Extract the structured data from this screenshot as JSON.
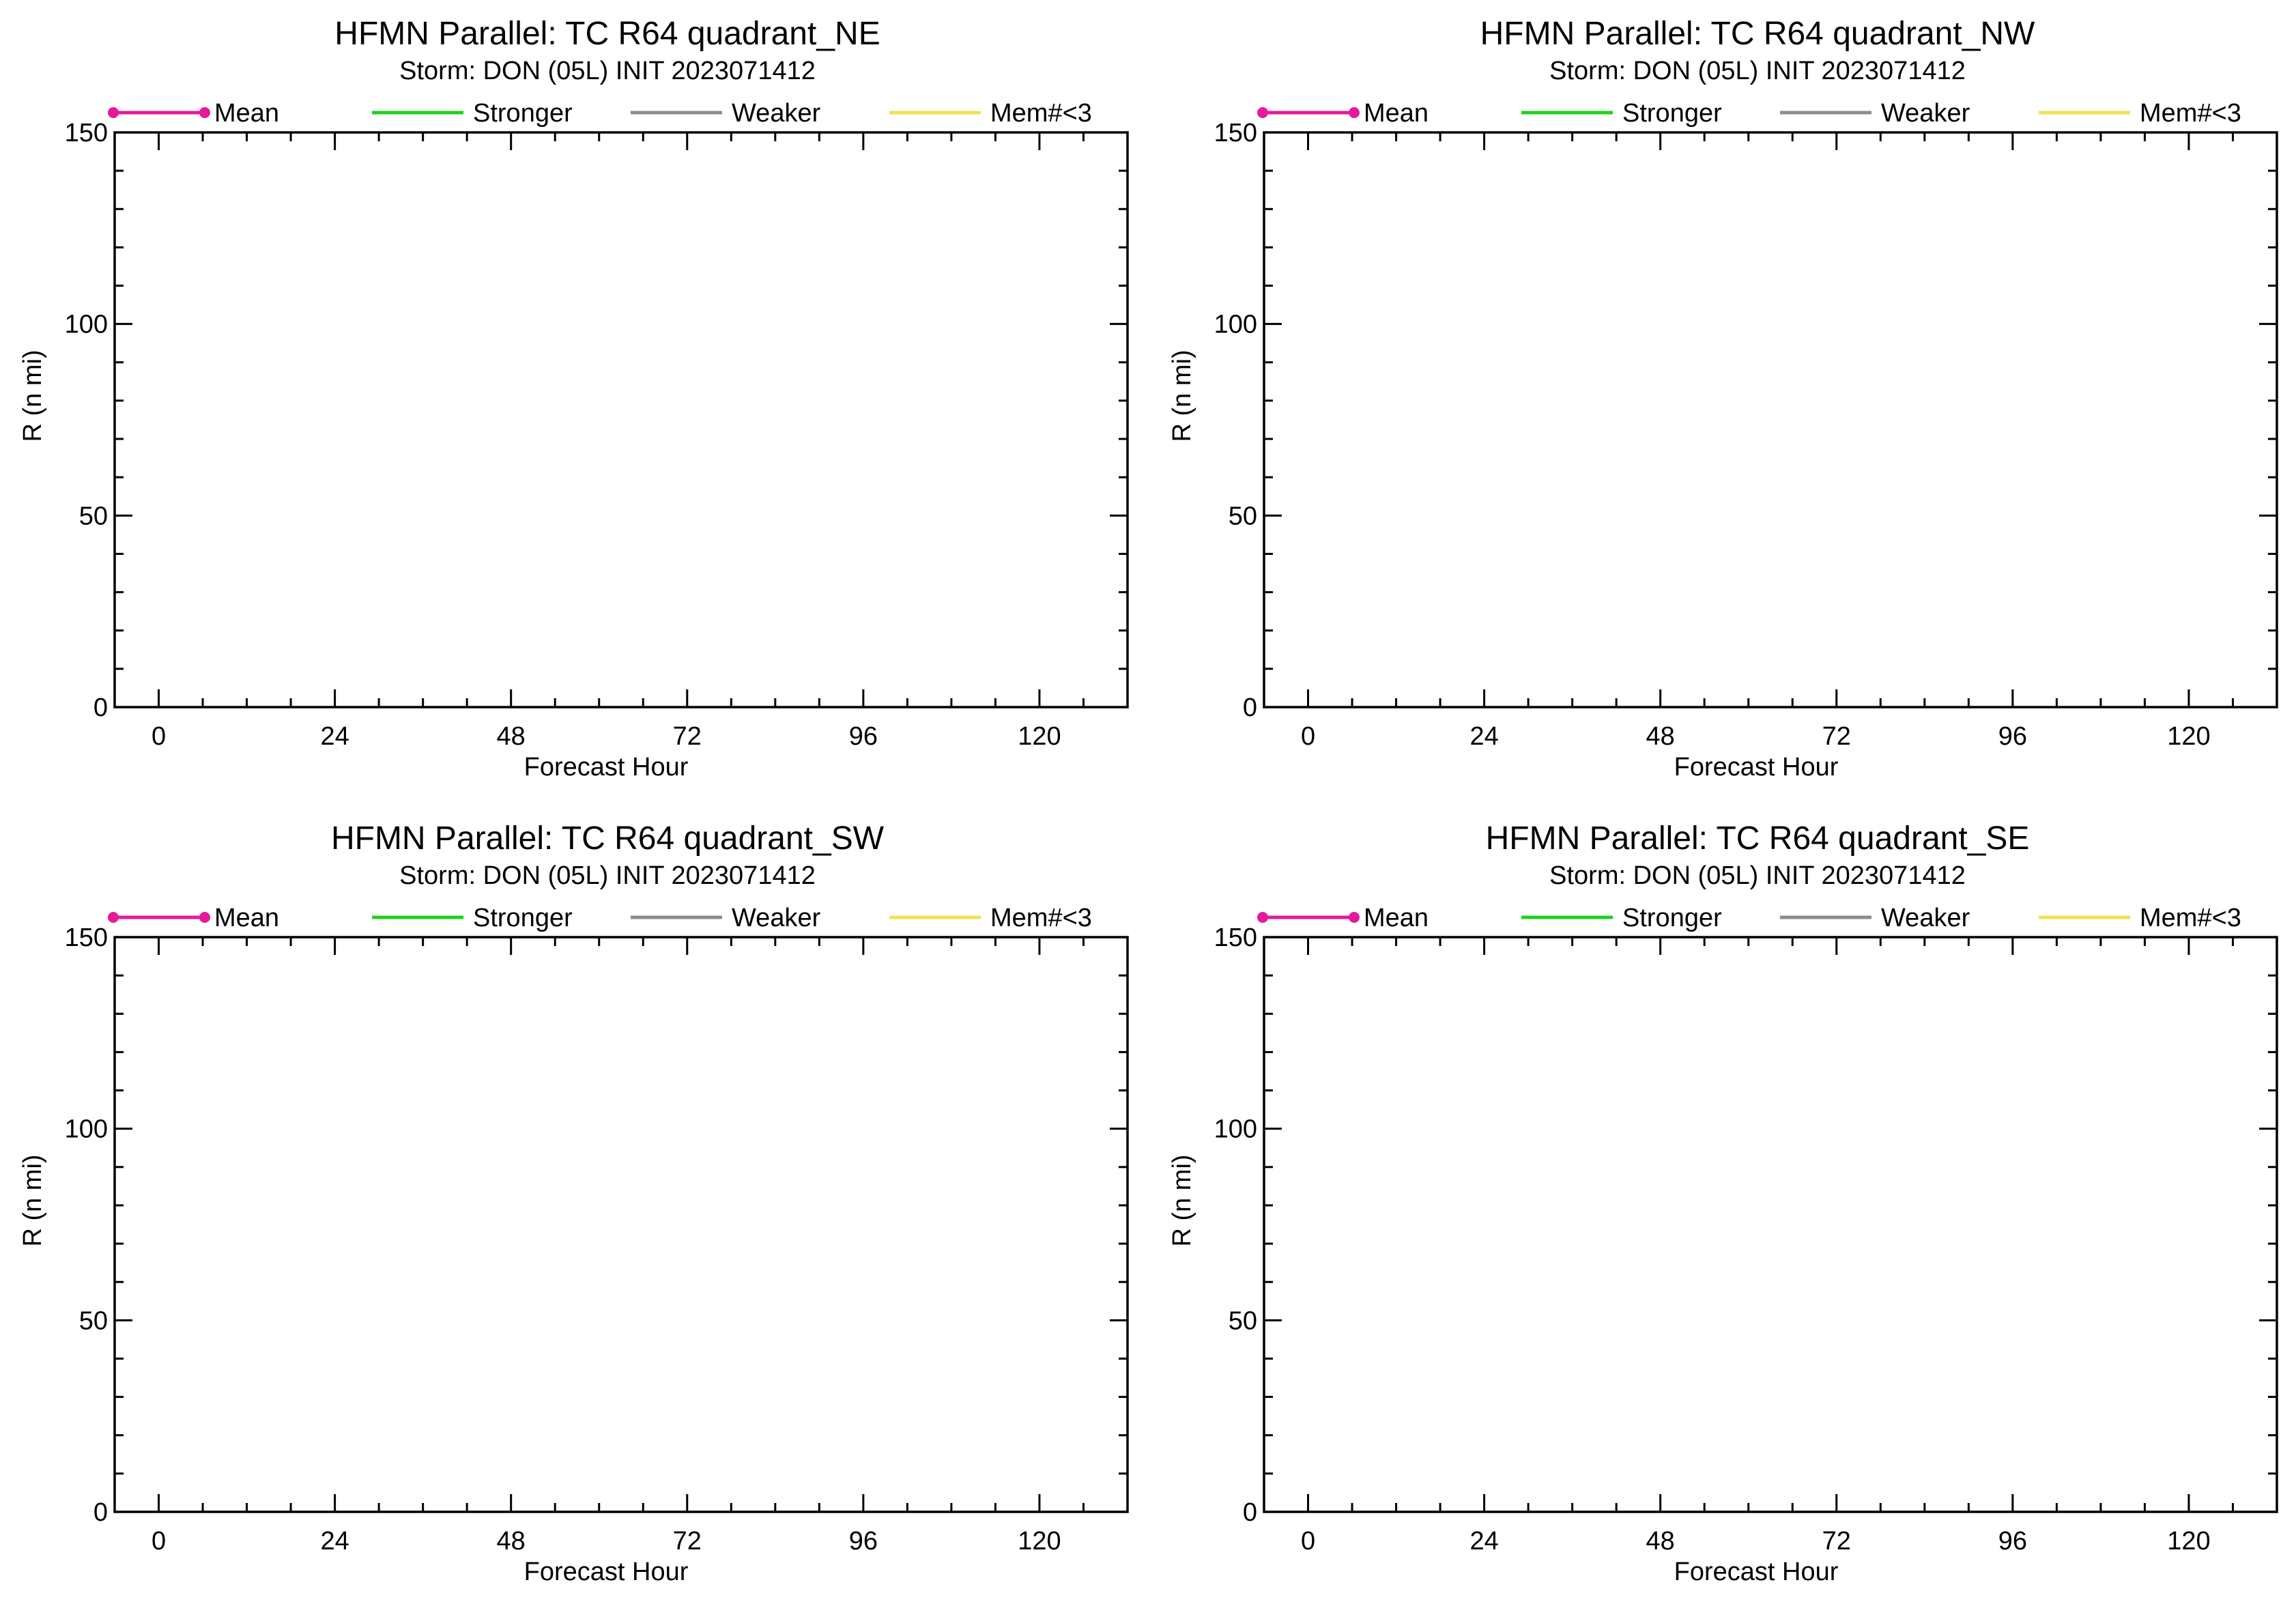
{
  "chart_data": [
    {
      "type": "line",
      "title": "HFMN Parallel: TC  R64 quadrant_NE",
      "subtitle": "Storm: DON (05L) INIT 2023071412",
      "xlabel": "Forecast Hour",
      "ylabel": "R (n mi)",
      "xlim": [
        -6,
        132
      ],
      "ylim": [
        0,
        150
      ],
      "xticks": [
        0,
        24,
        48,
        72,
        96,
        120
      ],
      "yticks": [
        0,
        50,
        100,
        150
      ],
      "legend": [
        "Mean",
        "Stronger",
        "Weaker",
        "Mem#<3"
      ],
      "series": []
    },
    {
      "type": "line",
      "title": "HFMN Parallel: TC  R64 quadrant_NW",
      "subtitle": "Storm: DON (05L) INIT 2023071412",
      "xlabel": "Forecast Hour",
      "ylabel": "R (n mi)",
      "xlim": [
        -6,
        132
      ],
      "ylim": [
        0,
        150
      ],
      "xticks": [
        0,
        24,
        48,
        72,
        96,
        120
      ],
      "yticks": [
        0,
        50,
        100,
        150
      ],
      "legend": [
        "Mean",
        "Stronger",
        "Weaker",
        "Mem#<3"
      ],
      "series": []
    },
    {
      "type": "line",
      "title": "HFMN Parallel: TC  R64 quadrant_SW",
      "subtitle": "Storm: DON (05L) INIT 2023071412",
      "xlabel": "Forecast Hour",
      "ylabel": "R (n mi)",
      "xlim": [
        -6,
        132
      ],
      "ylim": [
        0,
        150
      ],
      "xticks": [
        0,
        24,
        48,
        72,
        96,
        120
      ],
      "yticks": [
        0,
        50,
        100,
        150
      ],
      "legend": [
        "Mean",
        "Stronger",
        "Weaker",
        "Mem#<3"
      ],
      "series": []
    },
    {
      "type": "line",
      "title": "HFMN Parallel: TC  R64 quadrant_SE",
      "subtitle": "Storm: DON (05L) INIT 2023071412",
      "xlabel": "Forecast Hour",
      "ylabel": "R (n mi)",
      "xlim": [
        -6,
        132
      ],
      "ylim": [
        0,
        150
      ],
      "xticks": [
        0,
        24,
        48,
        72,
        96,
        120
      ],
      "yticks": [
        0,
        50,
        100,
        150
      ],
      "legend": [
        "Mean",
        "Stronger",
        "Weaker",
        "Mem#<3"
      ],
      "series": []
    }
  ],
  "legend_colors": {
    "Mean": "#e6199b",
    "Stronger": "#1ed21e",
    "Weaker": "#8c8c8c",
    "Mem#<3": "#f0e150"
  }
}
